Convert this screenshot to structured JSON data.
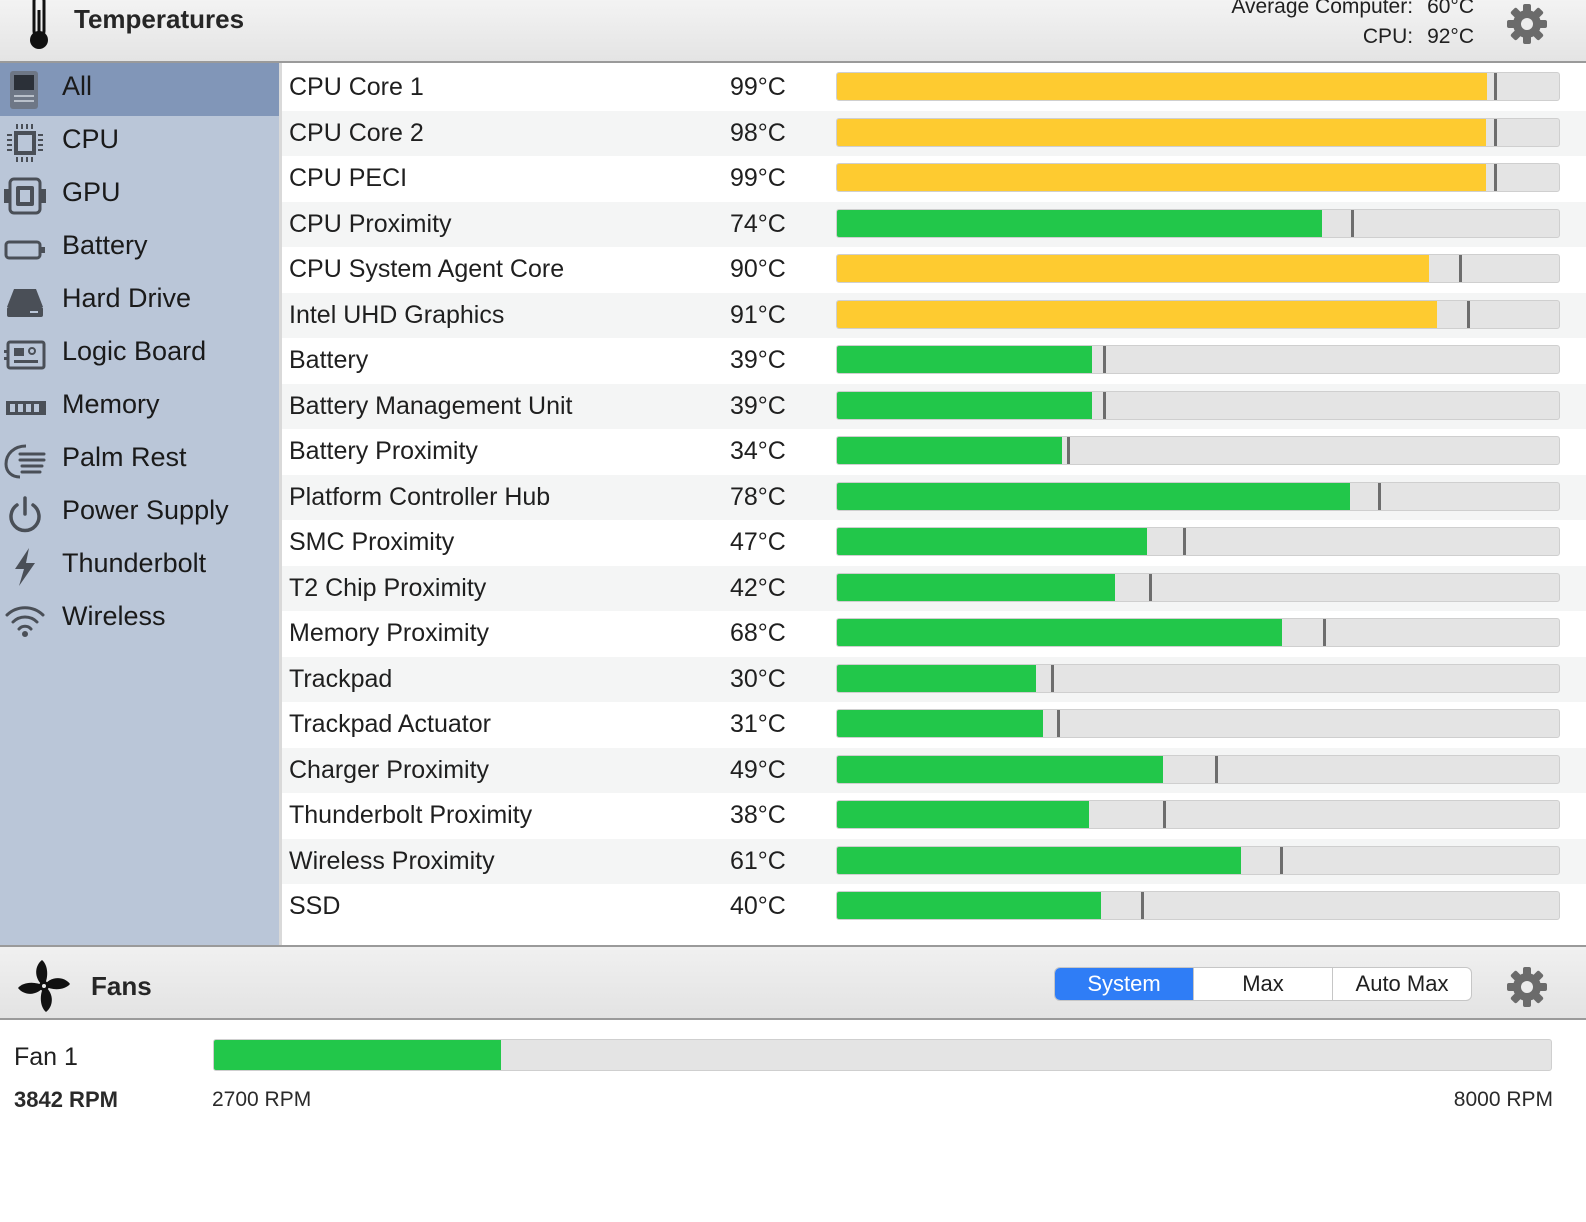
{
  "header": {
    "title": "Temperatures",
    "average_label": "Average Computer:",
    "average_value": "60°C",
    "cpu_label": "CPU:",
    "cpu_value": "92°C",
    "icon": "thermometer-icon",
    "settings_icon": "gear-icon"
  },
  "sidebar": {
    "items": [
      {
        "label": "All",
        "icon": "computer-icon",
        "selected": true
      },
      {
        "label": "CPU",
        "icon": "cpu-chip-icon"
      },
      {
        "label": "GPU",
        "icon": "gpu-chip-icon"
      },
      {
        "label": "Battery",
        "icon": "battery-icon"
      },
      {
        "label": "Hard Drive",
        "icon": "hard-drive-icon"
      },
      {
        "label": "Logic Board",
        "icon": "logic-board-icon"
      },
      {
        "label": "Memory",
        "icon": "memory-icon"
      },
      {
        "label": "Palm Rest",
        "icon": "palm-rest-icon"
      },
      {
        "label": "Power Supply",
        "icon": "power-icon"
      },
      {
        "label": "Thunderbolt",
        "icon": "thunderbolt-icon"
      },
      {
        "label": "Wireless",
        "icon": "wifi-icon"
      }
    ]
  },
  "sensors": [
    {
      "name": "CPU Core 1",
      "temp": "99°C",
      "level": 0.9,
      "marker": 0.91,
      "status": "warm"
    },
    {
      "name": "CPU Core 2",
      "temp": "98°C",
      "level": 0.899,
      "marker": 0.91,
      "status": "warm"
    },
    {
      "name": "CPU PECI",
      "temp": "99°C",
      "level": 0.899,
      "marker": 0.91,
      "status": "warm"
    },
    {
      "name": "CPU Proximity",
      "temp": "74°C",
      "level": 0.672,
      "marker": 0.712,
      "status": "normal"
    },
    {
      "name": "CPU System Agent Core",
      "temp": "90°C",
      "level": 0.82,
      "marker": 0.862,
      "status": "warm"
    },
    {
      "name": "Intel UHD Graphics",
      "temp": "91°C",
      "level": 0.831,
      "marker": 0.873,
      "status": "warm"
    },
    {
      "name": "Battery",
      "temp": "39°C",
      "level": 0.353,
      "marker": 0.368,
      "status": "normal"
    },
    {
      "name": "Battery Management Unit",
      "temp": "39°C",
      "level": 0.353,
      "marker": 0.368,
      "status": "normal"
    },
    {
      "name": "Battery Proximity",
      "temp": "34°C",
      "level": 0.312,
      "marker": 0.319,
      "status": "normal"
    },
    {
      "name": "Platform Controller Hub",
      "temp": "78°C",
      "level": 0.71,
      "marker": 0.749,
      "status": "normal"
    },
    {
      "name": "SMC Proximity",
      "temp": "47°C",
      "level": 0.429,
      "marker": 0.479,
      "status": "normal"
    },
    {
      "name": "T2 Chip Proximity",
      "temp": "42°C",
      "level": 0.385,
      "marker": 0.432,
      "status": "normal"
    },
    {
      "name": "Memory Proximity",
      "temp": "68°C",
      "level": 0.617,
      "marker": 0.673,
      "status": "normal"
    },
    {
      "name": "Trackpad",
      "temp": "30°C",
      "level": 0.276,
      "marker": 0.297,
      "status": "normal"
    },
    {
      "name": "Trackpad Actuator",
      "temp": "31°C",
      "level": 0.285,
      "marker": 0.305,
      "status": "normal"
    },
    {
      "name": "Charger Proximity",
      "temp": "49°C",
      "level": 0.451,
      "marker": 0.523,
      "status": "normal"
    },
    {
      "name": "Thunderbolt Proximity",
      "temp": "38°C",
      "level": 0.349,
      "marker": 0.451,
      "status": "normal"
    },
    {
      "name": "Wireless Proximity",
      "temp": "61°C",
      "level": 0.56,
      "marker": 0.614,
      "status": "normal"
    },
    {
      "name": "SSD",
      "temp": "40°C",
      "level": 0.366,
      "marker": 0.421,
      "status": "normal"
    }
  ],
  "status_colors": {
    "warm": "#fecb30",
    "normal": "#22c74a"
  },
  "fans": {
    "title": "Fans",
    "icon": "fan-icon",
    "settings_icon": "gear-icon",
    "modes": [
      {
        "label": "System",
        "active": true
      },
      {
        "label": "Max",
        "active": false
      },
      {
        "label": "Auto Max",
        "active": false
      }
    ],
    "items": [
      {
        "name": "Fan 1",
        "rpm": "3842 RPM",
        "min_label": "2700 RPM",
        "max_label": "8000 RPM",
        "level": 0.215
      }
    ]
  }
}
